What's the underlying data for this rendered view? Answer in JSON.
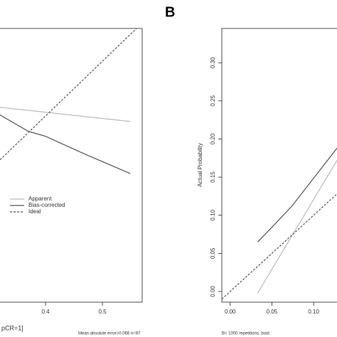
{
  "chart_data": [
    {
      "type": "line",
      "x_label": "pCR=1]",
      "footer": "Mean absolute error=0.066 n=97",
      "xlim": [
        0.32,
        0.57
      ],
      "ylim": [
        0.06,
        0.56
      ],
      "xticks": [
        0.4,
        0.5
      ],
      "legend": "bottom-left",
      "series": [
        {
          "name": "Apparent",
          "color": "#bbbbbb",
          "dash": "solid",
          "x": [
            0.32,
            0.549
          ],
          "values": [
            0.416,
            0.39
          ]
        },
        {
          "name": "Bias-corrected",
          "color": "#555555",
          "dash": "solid",
          "x": [
            0.32,
            0.37,
            0.4,
            0.47,
            0.549
          ],
          "values": [
            0.402,
            0.372,
            0.363,
            0.33,
            0.295
          ]
        },
        {
          "name": "Ideal",
          "color": "#555555",
          "dash": "dashed",
          "x": [
            0.32,
            0.56
          ],
          "values": [
            0.32,
            0.56
          ]
        }
      ]
    },
    {
      "type": "line",
      "panel_label": "B",
      "y_label": "Actual Probability",
      "footer": "B= 1000 repetitions, boot",
      "xlim": [
        -0.01,
        0.128
      ],
      "ylim": [
        -0.014,
        0.345
      ],
      "xticks": [
        {
          "value": 0,
          "label": "0.00"
        },
        0.05,
        {
          "value": 0.1,
          "label": "0.10"
        }
      ],
      "yticks": [
        {
          "value": 0,
          "label": "0.00"
        },
        0.05,
        {
          "value": 0.1,
          "label": "0.10"
        },
        0.15,
        {
          "value": 0.2,
          "label": "0.20"
        },
        0.25,
        {
          "value": 0.3,
          "label": "0.30"
        }
      ],
      "series": [
        {
          "color": "#bbbbbb",
          "dash": "solid",
          "x": [
            0.033,
            0.128
          ],
          "values": [
            -0.002,
            0.172
          ]
        },
        {
          "color": "#555555",
          "dash": "solid",
          "x": [
            0.033,
            0.048,
            0.074,
            0.128
          ],
          "values": [
            0.065,
            0.082,
            0.112,
            0.188
          ]
        },
        {
          "color": "#555555",
          "dash": "dashed",
          "x": [
            -0.01,
            0.128
          ],
          "values": [
            -0.01,
            0.128
          ]
        }
      ]
    }
  ]
}
